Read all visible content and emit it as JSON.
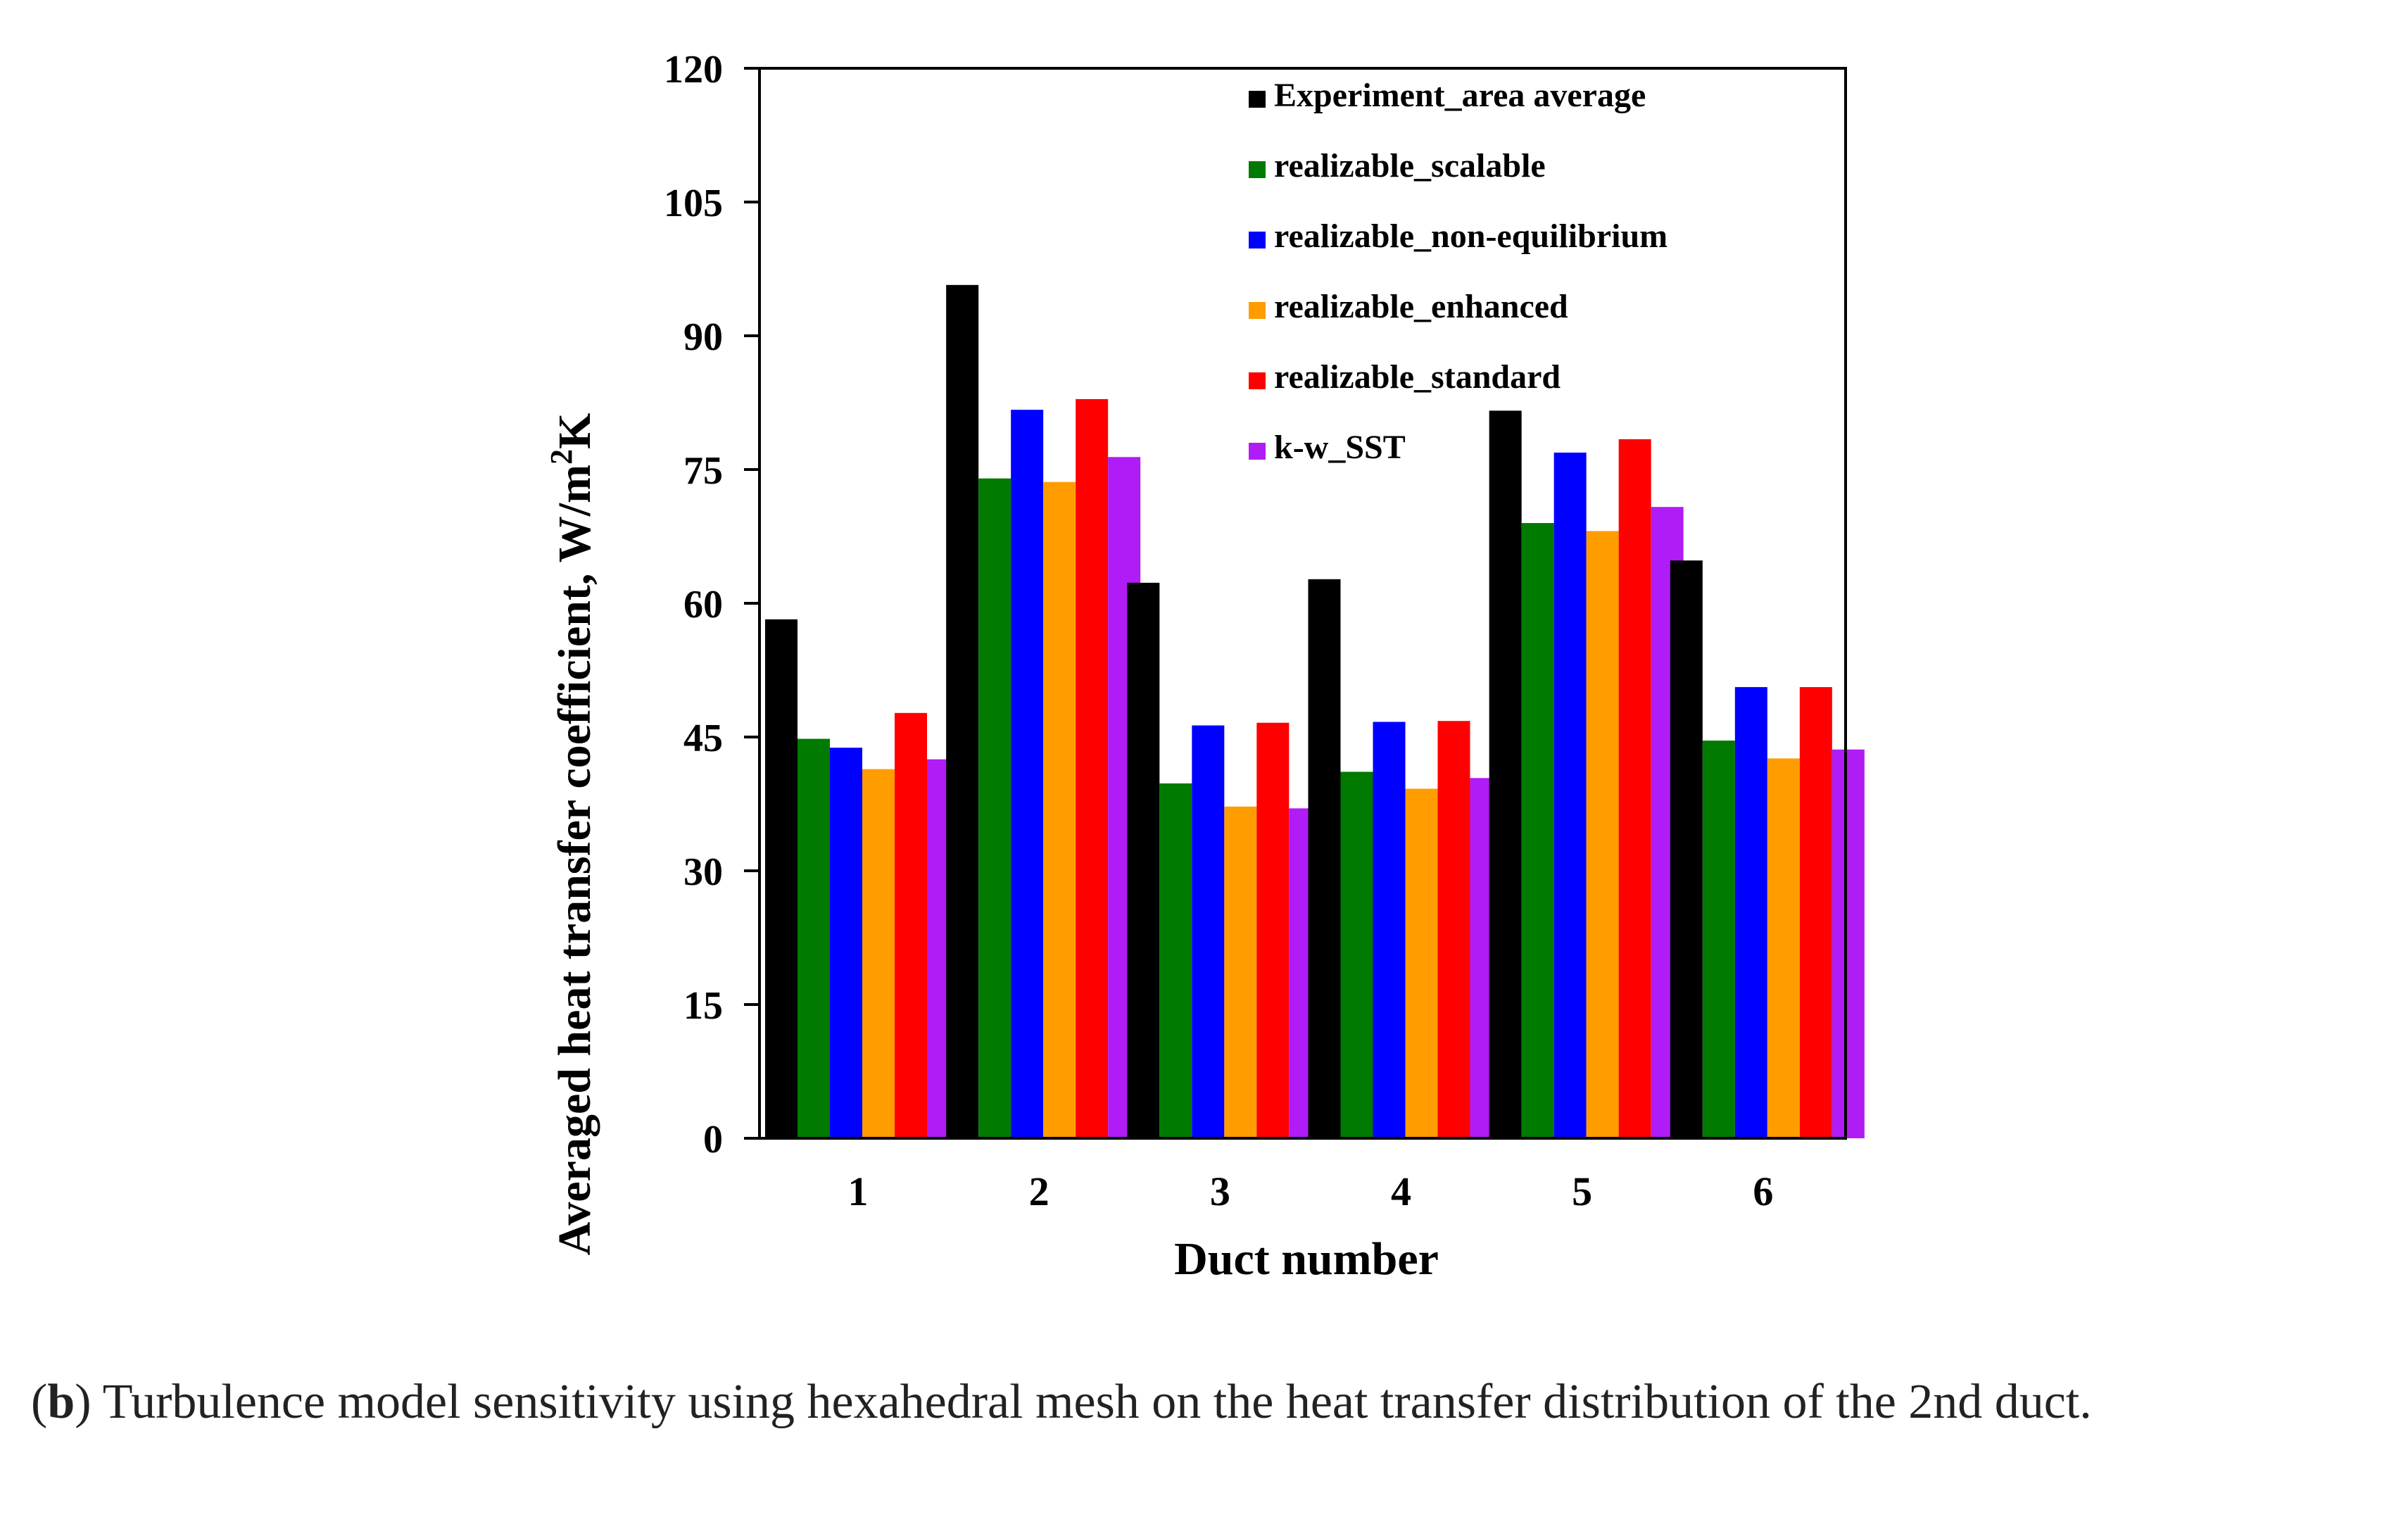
{
  "chart_data": {
    "type": "bar",
    "title": "",
    "xlabel": "Duct number",
    "ylabel": "Averaged heat transfer coefficient,  W/m²K",
    "ylabel_parts": [
      "Averaged heat transfer coefficient,  W/m",
      "2",
      "K"
    ],
    "ylim": [
      0,
      120
    ],
    "yticks": [
      0,
      15,
      30,
      45,
      60,
      75,
      90,
      105,
      120
    ],
    "categories": [
      "1",
      "2",
      "3",
      "4",
      "5",
      "6"
    ],
    "legend_position": "top-right",
    "series": [
      {
        "name": "Experiment_area average",
        "color": "#000000",
        "values": [
          58.2,
          95.7,
          62.3,
          62.7,
          81.6,
          64.8
        ]
      },
      {
        "name": "realizable_scalable",
        "color": "#007a00",
        "values": [
          44.8,
          74.0,
          39.8,
          41.1,
          69.0,
          44.6
        ]
      },
      {
        "name": "realizable_non-equilibrium",
        "color": "#0000ff",
        "values": [
          43.8,
          81.7,
          46.3,
          46.7,
          76.9,
          50.6
        ]
      },
      {
        "name": "realizable_enhanced",
        "color": "#ff9c00",
        "values": [
          41.4,
          73.6,
          37.2,
          39.2,
          68.1,
          42.6
        ]
      },
      {
        "name": "realizable_standard",
        "color": "#ff0000",
        "values": [
          47.7,
          82.9,
          46.6,
          46.8,
          78.4,
          50.6
        ]
      },
      {
        "name": "k-w_SST",
        "color": "#b01cf5",
        "values": [
          42.5,
          76.4,
          37.0,
          40.4,
          70.8,
          43.6
        ]
      }
    ]
  },
  "caption": {
    "label": "b",
    "text": " Turbulence model sensitivity using hexahedral mesh on the heat transfer distribution of the 2nd duct."
  }
}
